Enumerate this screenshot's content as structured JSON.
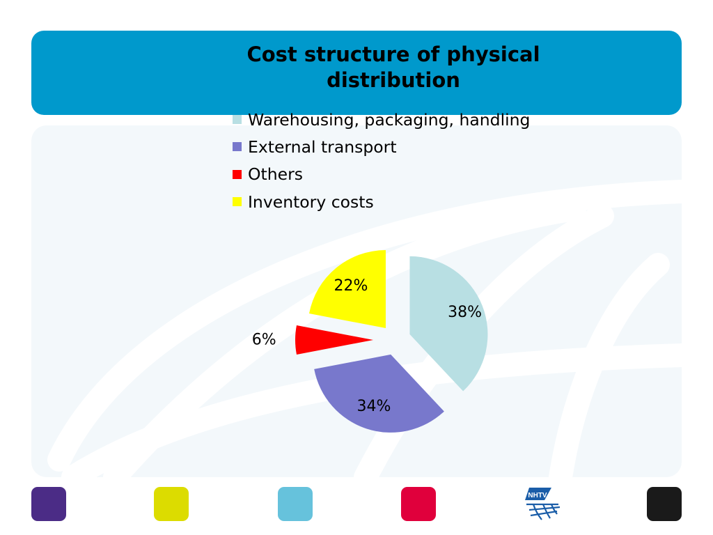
{
  "slide": {
    "title": "Cost structure of physical distribution"
  },
  "chart_data": {
    "type": "pie",
    "title": "Cost structure of physical distribution",
    "style": "exploded",
    "legend_position": "top",
    "slices": [
      {
        "label": "Warehousing, packaging, handling",
        "value": 38,
        "display": "38%",
        "color": "#b8dfe3"
      },
      {
        "label": "External transport",
        "value": 34,
        "display": "34%",
        "color": "#7878cc"
      },
      {
        "label": "Others",
        "value": 6,
        "display": "6%",
        "color": "#ff0000"
      },
      {
        "label": "Inventory costs",
        "value": 22,
        "display": "22%",
        "color": "#ffff00"
      }
    ]
  },
  "footer": {
    "squares": [
      {
        "name": "purple",
        "color": "#4b2c86"
      },
      {
        "name": "yellow",
        "color": "#dcdc00"
      },
      {
        "name": "light-blue",
        "color": "#66c2dc"
      },
      {
        "name": "red",
        "color": "#e0003c"
      },
      {
        "name": "black",
        "color": "#1a1a1a"
      }
    ],
    "logo": {
      "text": "NHTV",
      "color": "#1a5da8"
    }
  }
}
